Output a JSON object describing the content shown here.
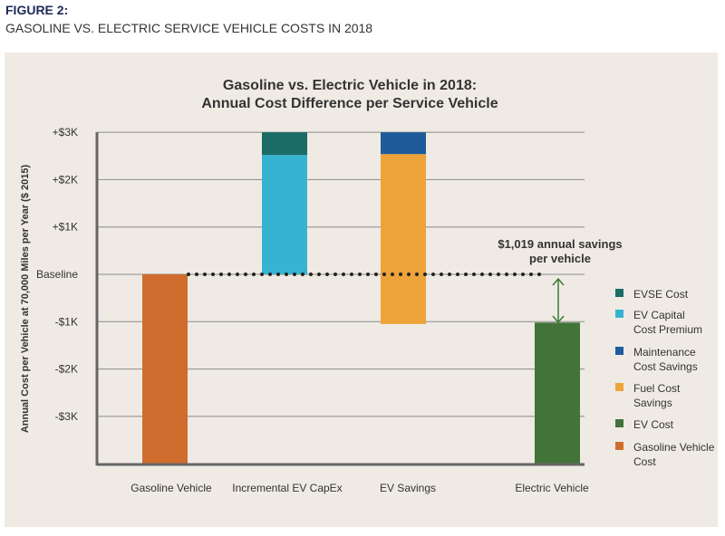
{
  "figure_label": "FIGURE 2:",
  "figure_caption": "GASOLINE VS. ELECTRIC SERVICE VEHICLE COSTS IN 2018",
  "chart_data": {
    "type": "bar",
    "subtype": "waterfall",
    "title": [
      "Gasoline vs. Electric Vehicle in 2018:",
      "Annual Cost Difference per Service Vehicle"
    ],
    "ylabel": "Annual Cost per Vehicle at 70,000 Miles per Year ($ 2015)",
    "xlabel": "",
    "ylim": [
      -4,
      3
    ],
    "yticks": [
      {
        "v": 3,
        "label": "+$3K"
      },
      {
        "v": 2,
        "label": "+$2K"
      },
      {
        "v": 1,
        "label": "+$1K"
      },
      {
        "v": 0,
        "label": "Baseline"
      },
      {
        "v": -1,
        "label": "-$1K"
      },
      {
        "v": -2,
        "label": "-$2K"
      },
      {
        "v": -3,
        "label": "-$3K"
      }
    ],
    "categories": [
      "Gasoline Vehicle",
      "Incremental EV CapEx",
      "EV Savings",
      "Electric Vehicle"
    ],
    "segments": [
      {
        "category": 0,
        "series": "Gasoline Vehicle Cost",
        "from": 0,
        "to": -4
      },
      {
        "category": 1,
        "series": "EV Capital Cost Premium",
        "from": 0,
        "to": 2.52
      },
      {
        "category": 1,
        "series": "EVSE Cost",
        "from": 2.52,
        "to": 3.0
      },
      {
        "category": 2,
        "series": "Fuel Cost Savings",
        "from": -1.05,
        "to": 2.54
      },
      {
        "category": 2,
        "series": "Maintenance Cost Savings",
        "from": 2.54,
        "to": 3.0
      },
      {
        "category": 3,
        "series": "EV Cost",
        "from": -1.019,
        "to": -4
      }
    ],
    "legend": [
      {
        "label": [
          "EVSE Cost"
        ],
        "color": "#1b6b66"
      },
      {
        "label": [
          "EV Capital",
          "Cost Premium"
        ],
        "color": "#35b3d1"
      },
      {
        "label": [
          "Maintenance",
          "Cost Savings"
        ],
        "color": "#1f5b9a"
      },
      {
        "label": [
          "Fuel Cost",
          "Savings"
        ],
        "color": "#eea23a"
      },
      {
        "label": [
          "EV Cost"
        ],
        "color": "#42743a"
      },
      {
        "label": [
          "Gasoline Vehicle",
          "Cost"
        ],
        "color": "#d06d2e"
      }
    ],
    "legend_position": "right",
    "grid": true,
    "annotation": [
      "$1,019 annual savings",
      "per vehicle"
    ],
    "savings": -1.019
  }
}
